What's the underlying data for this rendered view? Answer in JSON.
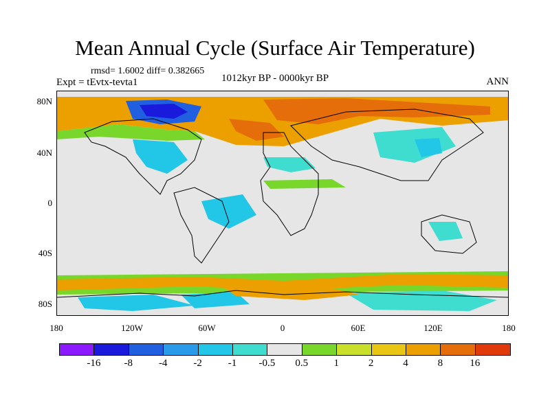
{
  "title": "Mean Annual Cycle (Surface Air Temperature)",
  "stats": "rmsd= 1.6002 diff= 0.382665",
  "experiment": "Expt = tEvtx-tevta1",
  "period": "1012kyr BP - 0000kyr BP",
  "season": "ANN",
  "latitude_labels": [
    "80N",
    "40N",
    "0",
    "40S",
    "80S"
  ],
  "longitude_labels": [
    "180",
    "120W",
    "60W",
    "0",
    "60E",
    "120E",
    "180"
  ],
  "colorbar": {
    "colors": [
      "#8c1aff",
      "#1a1adc",
      "#1f5fe0",
      "#2a9be8",
      "#22c6e6",
      "#3fdcd0",
      "#e6e6e6",
      "#79d62a",
      "#c8e029",
      "#eac614",
      "#eba000",
      "#e56d0a",
      "#e03a0a"
    ],
    "labels": [
      "-16",
      "-8",
      "-4",
      "-2",
      "-1",
      "-0.5",
      "0.5",
      "1",
      "2",
      "4",
      "8",
      "16"
    ]
  }
}
